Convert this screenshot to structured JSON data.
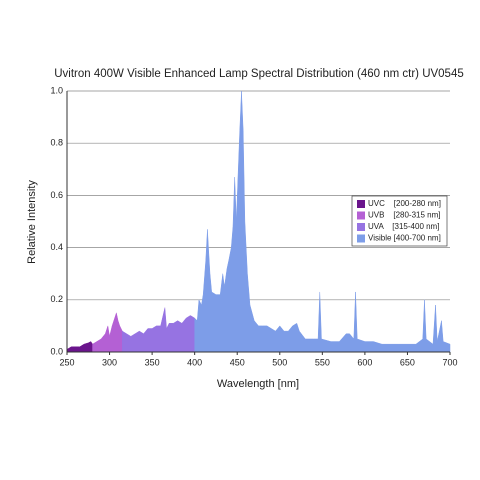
{
  "chart_data": {
    "type": "area",
    "title": "Uvitron 400W Visible Enhanced Lamp Spectral Distribution (460 nm ctr) UV0545",
    "xlabel": "Wavelength [nm]",
    "ylabel": "Relative Intensity",
    "xlim": [
      250,
      700
    ],
    "xticks": [
      250,
      300,
      350,
      400,
      450,
      500,
      550,
      600,
      650,
      700
    ],
    "ylim": [
      0,
      1
    ],
    "yticks": [
      {
        "value": 0,
        "label": "0.0"
      },
      0.2,
      0.4,
      0.6,
      0.8,
      {
        "value": 1,
        "label": "1.0"
      }
    ],
    "grid": true,
    "legend": "right",
    "series": [
      {
        "name": "UVC    [200-280 nm]",
        "color": "#6a148c",
        "x": [
          250,
          255,
          260,
          265,
          270,
          275,
          278,
          280
        ],
        "values": [
          0.01,
          0.02,
          0.02,
          0.02,
          0.03,
          0.035,
          0.04,
          0.03
        ]
      },
      {
        "name": "UVB    [280-315 nm]",
        "color": "#b460d4",
        "x": [
          280,
          285,
          290,
          295,
          298,
          300,
          303,
          306,
          308,
          310,
          312,
          315
        ],
        "values": [
          0.03,
          0.04,
          0.05,
          0.07,
          0.1,
          0.06,
          0.1,
          0.13,
          0.15,
          0.12,
          0.1,
          0.08
        ]
      },
      {
        "name": "UVA    [315-400 nm]",
        "color": "#9673e2",
        "x": [
          315,
          320,
          325,
          330,
          335,
          340,
          345,
          350,
          355,
          360,
          365,
          367,
          370,
          375,
          380,
          385,
          390,
          395,
          400
        ],
        "values": [
          0.08,
          0.07,
          0.06,
          0.07,
          0.08,
          0.07,
          0.09,
          0.09,
          0.1,
          0.1,
          0.17,
          0.09,
          0.11,
          0.11,
          0.12,
          0.11,
          0.13,
          0.14,
          0.13
        ]
      },
      {
        "name": "Visible [400-700 nm]",
        "color": "#7d9de8",
        "x": [
          400,
          403,
          405,
          408,
          410,
          413,
          415,
          418,
          420,
          425,
          430,
          433,
          435,
          438,
          440,
          443,
          445,
          447,
          449,
          451,
          453,
          455,
          457,
          459,
          462,
          465,
          470,
          475,
          480,
          485,
          490,
          495,
          500,
          505,
          510,
          515,
          520,
          523,
          530,
          540,
          545,
          547,
          549,
          560,
          570,
          578,
          582,
          587,
          589,
          591,
          600,
          610,
          620,
          640,
          660,
          668,
          670,
          672,
          680,
          683,
          685,
          690,
          692,
          700
        ],
        "values": [
          0.13,
          0.12,
          0.2,
          0.18,
          0.22,
          0.35,
          0.47,
          0.3,
          0.23,
          0.22,
          0.22,
          0.3,
          0.25,
          0.32,
          0.35,
          0.4,
          0.48,
          0.67,
          0.5,
          0.68,
          0.85,
          1.0,
          0.85,
          0.5,
          0.3,
          0.18,
          0.12,
          0.1,
          0.1,
          0.1,
          0.09,
          0.08,
          0.1,
          0.08,
          0.08,
          0.1,
          0.11,
          0.08,
          0.05,
          0.05,
          0.05,
          0.23,
          0.05,
          0.04,
          0.04,
          0.07,
          0.07,
          0.05,
          0.23,
          0.05,
          0.04,
          0.04,
          0.03,
          0.03,
          0.03,
          0.05,
          0.2,
          0.05,
          0.03,
          0.18,
          0.04,
          0.12,
          0.04,
          0.03
        ]
      }
    ]
  }
}
